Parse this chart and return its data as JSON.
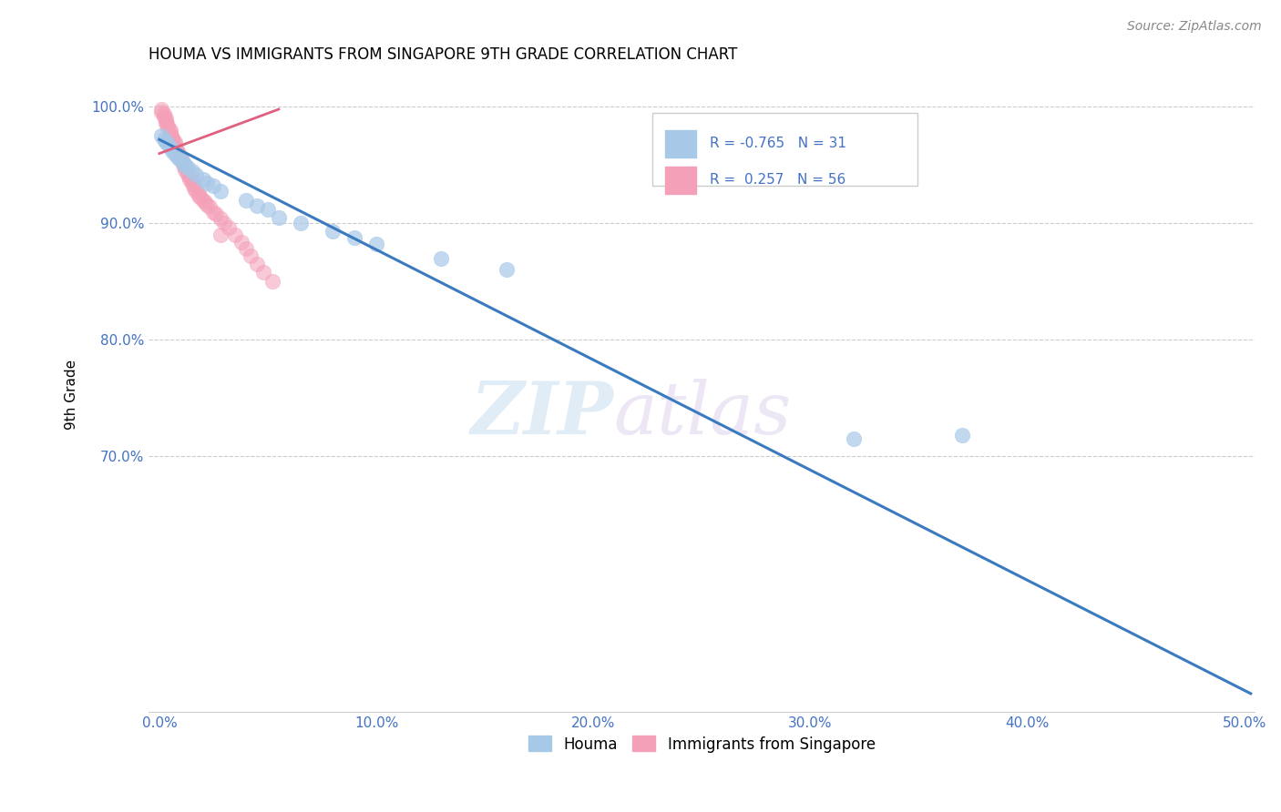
{
  "title": "HOUMA VS IMMIGRANTS FROM SINGAPORE 9TH GRADE CORRELATION CHART",
  "source": "Source: ZipAtlas.com",
  "ylabel": "9th Grade",
  "legend_labels": [
    "Houma",
    "Immigrants from Singapore"
  ],
  "R_blue": -0.765,
  "N_blue": 31,
  "R_pink": 0.257,
  "N_pink": 56,
  "blue_color": "#a8c8e8",
  "pink_color": "#f4a0b8",
  "blue_line_color": "#3a7abf",
  "pink_line_color": "#e06080",
  "xlim": [
    -0.005,
    0.505
  ],
  "ylim": [
    0.48,
    1.025
  ],
  "yticks": [
    0.7,
    0.8,
    0.9,
    1.0
  ],
  "xticks": [
    0.0,
    0.1,
    0.2,
    0.3,
    0.4,
    0.5
  ],
  "watermark_zip": "ZIP",
  "watermark_atlas": "atlas",
  "blue_scatter_x": [
    0.001,
    0.002,
    0.003,
    0.004,
    0.005,
    0.006,
    0.007,
    0.008,
    0.009,
    0.01,
    0.011,
    0.012,
    0.013,
    0.015,
    0.017,
    0.02,
    0.022,
    0.025,
    0.028,
    0.04,
    0.045,
    0.05,
    0.055,
    0.065,
    0.08,
    0.09,
    0.1,
    0.13,
    0.16,
    0.32,
    0.37
  ],
  "blue_scatter_y": [
    0.975,
    0.972,
    0.97,
    0.968,
    0.965,
    0.962,
    0.96,
    0.958,
    0.956,
    0.954,
    0.952,
    0.95,
    0.948,
    0.945,
    0.942,
    0.938,
    0.935,
    0.932,
    0.928,
    0.92,
    0.915,
    0.912,
    0.905,
    0.9,
    0.893,
    0.888,
    0.882,
    0.87,
    0.86,
    0.715,
    0.718
  ],
  "pink_scatter_x": [
    0.001,
    0.001,
    0.002,
    0.002,
    0.003,
    0.003,
    0.003,
    0.004,
    0.004,
    0.005,
    0.005,
    0.005,
    0.006,
    0.006,
    0.007,
    0.007,
    0.007,
    0.008,
    0.008,
    0.009,
    0.009,
    0.01,
    0.01,
    0.011,
    0.011,
    0.012,
    0.012,
    0.013,
    0.013,
    0.014,
    0.014,
    0.015,
    0.015,
    0.016,
    0.016,
    0.017,
    0.018,
    0.018,
    0.019,
    0.02,
    0.021,
    0.022,
    0.023,
    0.025,
    0.026,
    0.028,
    0.03,
    0.032,
    0.035,
    0.038,
    0.04,
    0.042,
    0.045,
    0.048,
    0.052,
    0.028
  ],
  "pink_scatter_y": [
    0.998,
    0.996,
    0.994,
    0.992,
    0.99,
    0.988,
    0.986,
    0.984,
    0.982,
    0.98,
    0.978,
    0.976,
    0.974,
    0.972,
    0.97,
    0.968,
    0.966,
    0.964,
    0.962,
    0.96,
    0.958,
    0.956,
    0.954,
    0.952,
    0.95,
    0.948,
    0.946,
    0.944,
    0.942,
    0.94,
    0.938,
    0.936,
    0.934,
    0.932,
    0.93,
    0.928,
    0.926,
    0.924,
    0.922,
    0.92,
    0.918,
    0.916,
    0.914,
    0.91,
    0.908,
    0.904,
    0.9,
    0.896,
    0.89,
    0.884,
    0.878,
    0.872,
    0.865,
    0.858,
    0.85,
    0.89
  ],
  "blue_line_x": [
    0.0,
    0.503
  ],
  "blue_line_y": [
    0.972,
    0.496
  ],
  "pink_line_x": [
    0.0,
    0.055
  ],
  "pink_line_y": [
    0.96,
    0.998
  ]
}
